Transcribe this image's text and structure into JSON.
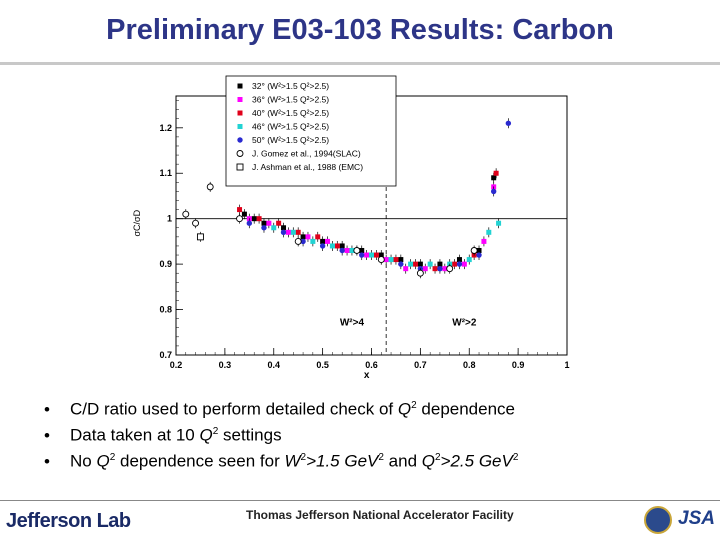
{
  "slide": {
    "title": "Preliminary E03-103 Results: Carbon",
    "footer_logo": "Jefferson Lab",
    "footer_facility": "Thomas Jefferson National Accelerator Facility",
    "footer_right_logo": "JSA",
    "accent_color": "#2d3587"
  },
  "bullets": [
    {
      "pre": "C/D ratio used to perform detailed check of ",
      "q": "Q",
      "post": " dependence"
    },
    {
      "pre": "Data taken at 10 ",
      "q": "Q",
      "post": " settings"
    },
    {
      "pre": "No ",
      "q": "Q",
      "mid": " dependence seen for ",
      "w": "W",
      "eq1": ">1.5 GeV",
      "and": " and ",
      "q2": "Q",
      "eq2": ">2.5 GeV"
    }
  ],
  "chart_data": {
    "type": "scatter",
    "xlabel": "x",
    "ylabel": "σC/σD",
    "xlim": [
      0.2,
      1.0
    ],
    "ylim": [
      0.7,
      1.27
    ],
    "xticks": [
      "0.2",
      "0.3",
      "0.4",
      "0.5",
      "0.6",
      "0.7",
      "0.8",
      "0.9",
      "1"
    ],
    "yticks": [
      "0.7",
      "0.8",
      "0.9",
      "1",
      "1.1",
      "1.2"
    ],
    "reference_line_y": 1.0,
    "dashed_line_x": 0.63,
    "annotations": [
      {
        "text": "W²>4",
        "x": 0.56,
        "y": 0.765
      },
      {
        "text": "W²>2",
        "x": 0.79,
        "y": 0.765
      }
    ],
    "legend_position": "top-center",
    "series": [
      {
        "name": "32° (W²>1.5  Q²>2.5)",
        "color": "#000000",
        "marker": "square",
        "x": [
          0.34,
          0.36,
          0.38,
          0.42,
          0.46,
          0.5,
          0.54,
          0.58,
          0.62,
          0.66,
          0.7,
          0.74,
          0.78,
          0.82,
          0.85
        ],
        "y": [
          1.01,
          1.0,
          0.99,
          0.98,
          0.96,
          0.95,
          0.94,
          0.93,
          0.92,
          0.91,
          0.9,
          0.9,
          0.91,
          0.93,
          1.09
        ]
      },
      {
        "name": "36° (W²>1.5  Q²>2.5)",
        "color": "#ff00ff",
        "marker": "square",
        "x": [
          0.35,
          0.39,
          0.43,
          0.47,
          0.51,
          0.55,
          0.59,
          0.63,
          0.67,
          0.71,
          0.75,
          0.79,
          0.83,
          0.85
        ],
        "y": [
          1.0,
          0.99,
          0.97,
          0.96,
          0.95,
          0.93,
          0.92,
          0.91,
          0.89,
          0.89,
          0.89,
          0.9,
          0.95,
          1.07
        ]
      },
      {
        "name": "40° (W²>1.5  Q²>2.5)",
        "color": "#e0001a",
        "marker": "square",
        "x": [
          0.33,
          0.37,
          0.41,
          0.45,
          0.49,
          0.53,
          0.57,
          0.61,
          0.65,
          0.69,
          0.73,
          0.77,
          0.81,
          0.855
        ],
        "y": [
          1.02,
          1.0,
          0.99,
          0.97,
          0.96,
          0.94,
          0.93,
          0.92,
          0.91,
          0.9,
          0.89,
          0.9,
          0.92,
          1.1
        ]
      },
      {
        "name": "46° (W²>1.5  Q²>2.5)",
        "color": "#22d3d3",
        "marker": "square",
        "x": [
          0.4,
          0.44,
          0.48,
          0.52,
          0.56,
          0.6,
          0.64,
          0.68,
          0.72,
          0.76,
          0.8,
          0.84,
          0.86
        ],
        "y": [
          0.98,
          0.97,
          0.95,
          0.94,
          0.93,
          0.92,
          0.91,
          0.9,
          0.9,
          0.9,
          0.91,
          0.97,
          0.99
        ]
      },
      {
        "name": "50° (W²>1.5  Q²>2.5)",
        "color": "#2a2ad0",
        "marker": "circle",
        "x": [
          0.35,
          0.38,
          0.42,
          0.46,
          0.5,
          0.54,
          0.58,
          0.62,
          0.66,
          0.7,
          0.74,
          0.78,
          0.82,
          0.85,
          0.88
        ],
        "y": [
          0.99,
          0.98,
          0.97,
          0.95,
          0.94,
          0.93,
          0.92,
          0.91,
          0.9,
          0.89,
          0.89,
          0.9,
          0.92,
          1.06,
          1.21
        ]
      },
      {
        "name": "J. Gomez et al., 1994(SLAC)",
        "color": "#000000",
        "marker": "open-circle",
        "x": [
          0.22,
          0.24,
          0.27,
          0.33,
          0.45,
          0.57,
          0.62,
          0.7,
          0.76,
          0.81
        ],
        "y": [
          1.01,
          0.99,
          1.07,
          1.0,
          0.95,
          0.93,
          0.91,
          0.88,
          0.89,
          0.93
        ]
      },
      {
        "name": "J. Ashman et al., 1988 (EMC)",
        "color": "#000000",
        "marker": "open-square",
        "x": [
          0.25
        ],
        "y": [
          0.96
        ]
      }
    ]
  }
}
